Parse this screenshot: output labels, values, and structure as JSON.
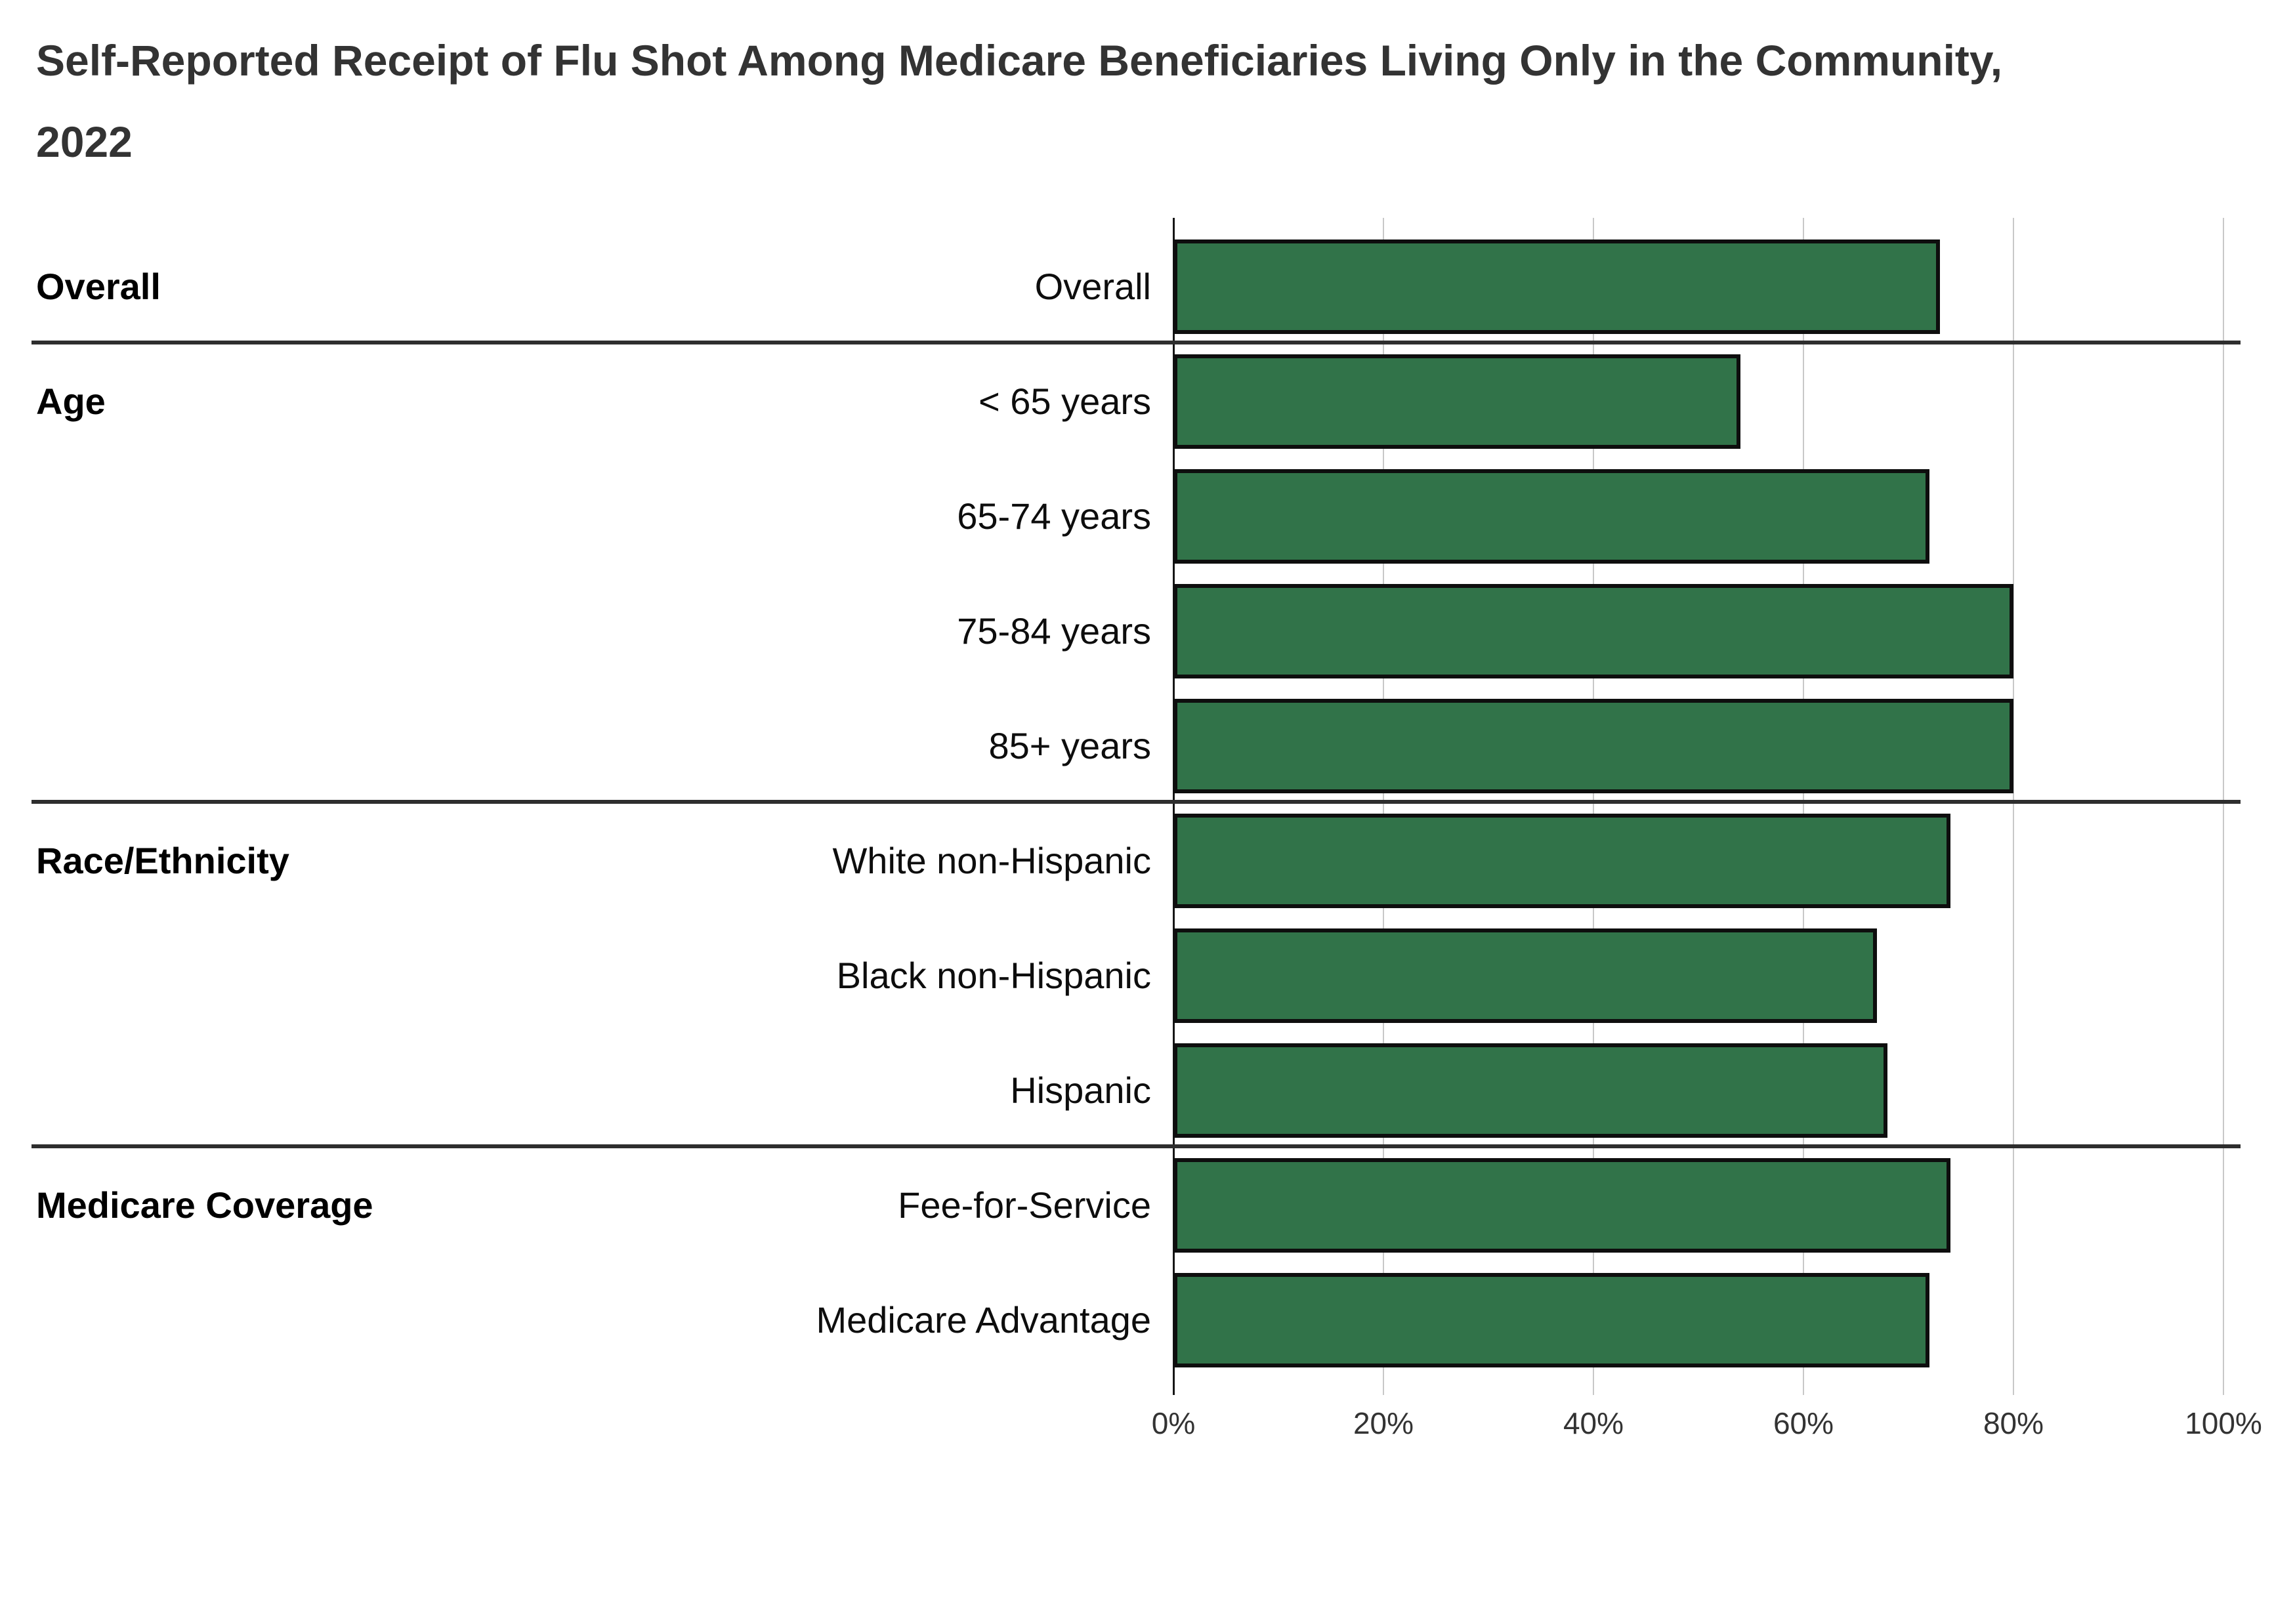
{
  "title": "Self-Reported Receipt of Flu Shot Among Medicare Beneficiaries Living Only in the Community, 2022",
  "chart_data": {
    "type": "bar",
    "orientation": "horizontal",
    "value_unit": "percent",
    "title": "Self-Reported Receipt of Flu Shot Among Medicare Beneficiaries Living Only in the Community, 2022",
    "xlabel": "",
    "ylabel": "",
    "xlim": [
      0,
      100
    ],
    "x_tick_labels": [
      "0%",
      "20%",
      "40%",
      "60%",
      "80%",
      "100%"
    ],
    "grid": "vertical gridlines every 20%, extending below axis as ticks",
    "legend": "none",
    "groups": [
      {
        "label": "Overall",
        "rows": [
          {
            "label": "Overall",
            "value": 73
          }
        ]
      },
      {
        "label": "Age",
        "rows": [
          {
            "label": "< 65 years",
            "value": 54
          },
          {
            "label": "65-74 years",
            "value": 72
          },
          {
            "label": "75-84 years",
            "value": 80
          },
          {
            "label": "85+ years",
            "value": 80
          }
        ]
      },
      {
        "label": "Race/Ethnicity",
        "rows": [
          {
            "label": "White non-Hispanic",
            "value": 74
          },
          {
            "label": "Black non-Hispanic",
            "value": 67
          },
          {
            "label": "Hispanic",
            "value": 68
          }
        ]
      },
      {
        "label": "Medicare Coverage",
        "rows": [
          {
            "label": "Fee-for-Service",
            "value": 74
          },
          {
            "label": "Medicare Advantage",
            "value": 72
          }
        ]
      }
    ],
    "colors": {
      "bar_fill": "#317349",
      "bar_border": "#0e0e0e",
      "gridline": "#c8c8c8",
      "axis_line": "#161616",
      "group_separator": "#2e2e2e",
      "title_text": "#333333",
      "label_text": "#0d0d0d",
      "tick_text": "#333333",
      "background": "#ffffff"
    }
  }
}
